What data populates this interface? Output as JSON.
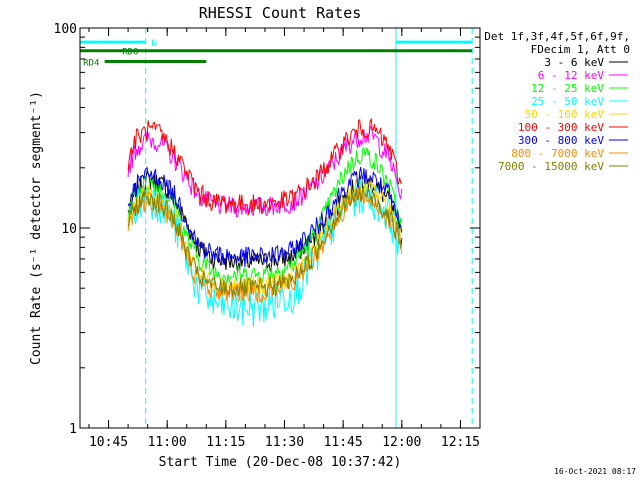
{
  "chart_data": {
    "type": "line",
    "title": "RHESSI Count Rates",
    "xlabel": "Start Time (20-Dec-08 10:37:42)",
    "ylabel": "Count Rate (s⁻¹ detector segment⁻¹)",
    "y_scale": "log",
    "ylim": [
      1,
      100
    ],
    "xlim": [
      "10:37:42",
      "12:20:00"
    ],
    "x_ticks": [
      "10:45",
      "11:00",
      "11:15",
      "11:30",
      "11:45",
      "12:00",
      "12:15"
    ],
    "y_ticks": [
      "1",
      "10",
      "100"
    ],
    "legend_header": [
      "Det 1f,3f,4f,5f,6f,9f,",
      "FDecim 1, Att 0"
    ],
    "legend_position": "right",
    "footer_date": "16-Oct-2021 08:17",
    "x": [
      "10:50",
      "10:52",
      "10:55",
      "10:58",
      "11:02",
      "11:05",
      "11:08",
      "11:12",
      "11:18",
      "11:25",
      "11:32",
      "11:38",
      "11:42",
      "11:46",
      "11:50",
      "11:53",
      "11:57",
      "12:00"
    ],
    "series": [
      {
        "name": "3 - 6 keV",
        "color": "#000000",
        "values": [
          12.0,
          15.5,
          17.5,
          17.0,
          14.0,
          10.5,
          8.0,
          7.0,
          6.8,
          6.8,
          7.2,
          9.0,
          11.5,
          15.0,
          17.0,
          16.5,
          13.5,
          8.5
        ]
      },
      {
        "name": "6 - 12 keV",
        "color": "#ff00ff",
        "values": [
          20.0,
          25.0,
          28.0,
          27.0,
          22.0,
          18.0,
          14.5,
          13.0,
          12.8,
          12.8,
          13.5,
          16.5,
          20.5,
          26.0,
          29.5,
          28.5,
          22.0,
          14.0
        ]
      },
      {
        "name": "12 - 25 keV",
        "color": "#00ff00",
        "values": [
          12.0,
          15.0,
          17.0,
          16.0,
          13.0,
          9.0,
          7.0,
          6.0,
          5.8,
          5.9,
          6.5,
          9.5,
          14.0,
          20.0,
          24.0,
          22.0,
          16.0,
          10.0
        ]
      },
      {
        "name": "25 - 50 keV",
        "color": "#00ffff",
        "values": [
          10.5,
          13.0,
          14.5,
          13.5,
          10.5,
          7.0,
          5.0,
          4.2,
          4.0,
          4.1,
          4.8,
          7.0,
          10.0,
          13.5,
          15.0,
          14.0,
          11.5,
          8.0
        ]
      },
      {
        "name": "50 - 100 keV",
        "color": "#ffd700",
        "values": [
          11.0,
          13.5,
          15.0,
          14.0,
          11.5,
          8.0,
          6.0,
          5.3,
          5.1,
          5.2,
          5.7,
          8.0,
          11.0,
          14.5,
          16.5,
          15.5,
          12.5,
          9.0
        ]
      },
      {
        "name": "100 - 300 keV",
        "color": "#ff0000",
        "values": [
          22.0,
          28.0,
          31.0,
          30.0,
          24.0,
          19.0,
          15.0,
          13.5,
          13.2,
          13.2,
          14.0,
          17.5,
          22.0,
          28.0,
          32.0,
          31.0,
          25.0,
          16.0
        ]
      },
      {
        "name": "300 - 800 keV",
        "color": "#0000ff",
        "values": [
          13.0,
          16.5,
          18.5,
          18.0,
          14.5,
          11.0,
          8.3,
          7.4,
          7.2,
          7.2,
          7.7,
          10.0,
          13.0,
          16.5,
          18.5,
          17.5,
          14.5,
          9.5
        ]
      },
      {
        "name": "800 - 7000 keV",
        "color": "#ff8c00",
        "values": [
          10.0,
          12.5,
          14.0,
          13.0,
          10.5,
          7.2,
          5.4,
          4.9,
          4.8,
          4.8,
          5.3,
          7.3,
          10.0,
          13.0,
          14.5,
          13.5,
          11.0,
          8.0
        ]
      },
      {
        "name": "7000 - 15000 keV",
        "color": "#808000",
        "values": [
          10.5,
          13.0,
          14.5,
          13.5,
          11.0,
          7.6,
          5.7,
          5.1,
          5.0,
          5.0,
          5.5,
          7.6,
          10.5,
          13.5,
          15.0,
          14.0,
          11.5,
          8.3
        ]
      }
    ],
    "flags": [
      {
        "label": "N",
        "color": "#00ffff",
        "segments": [
          [
            "10:37:42",
            "10:54:30"
          ],
          [
            "11:58:30",
            "12:18:00"
          ]
        ],
        "label_at": "10:56:00",
        "level": 85
      },
      {
        "label": "RD0",
        "color": "#008000",
        "segments": [
          [
            "10:37:42",
            "12:18:00"
          ]
        ],
        "label_at": "10:48:30",
        "level": 77
      },
      {
        "label": "RD4",
        "color": "#008000",
        "segments": [
          [
            "10:44:00",
            "11:10:00"
          ]
        ],
        "label_at": "10:38:30",
        "level": 68
      }
    ],
    "vertical_lines": [
      {
        "at": "10:37:42",
        "style": "solid",
        "color": "#00ffff"
      },
      {
        "at": "10:54:30",
        "style": "dashed",
        "color": "#00ffff"
      },
      {
        "at": "11:58:30",
        "style": "solid",
        "color": "#00ffff"
      },
      {
        "at": "12:18:00",
        "style": "dashed",
        "color": "#00ffff"
      }
    ],
    "grid": false
  }
}
